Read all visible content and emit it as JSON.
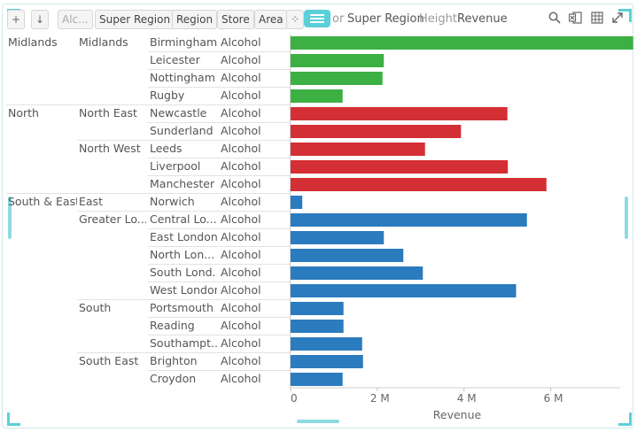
{
  "toolbar": {
    "filter_chip": "Alc...",
    "breadcrumbs": [
      "Super Region",
      "Region",
      "Store",
      "Area"
    ],
    "color_label_partial": "or",
    "color_value": "Super Region",
    "height_label": "Height",
    "height_value": "Revenue",
    "icons": [
      "add-panel-icon",
      "sort-icon",
      "scatter-icon",
      "menu-icon",
      "search-icon",
      "excel-icon",
      "table-icon",
      "expand-icon"
    ]
  },
  "chart_data": {
    "type": "bar",
    "orientation": "horizontal",
    "xlabel": "Revenue",
    "xlim": [
      0,
      7.6
    ],
    "xticks": [
      0,
      2,
      4,
      6
    ],
    "xtick_labels": [
      "0",
      "2 M",
      "4 M",
      "6 M"
    ],
    "super_regions": [
      {
        "name": "Midlands",
        "color": "#3cb043"
      },
      {
        "name": "North",
        "color": "#d32f35"
      },
      {
        "name": "South & East",
        "color": "#2b7bbf"
      }
    ],
    "rows": [
      {
        "super_region": "Midlands",
        "region": "Midlands",
        "store": "Birmingham",
        "area": "Alcohol",
        "revenue": 7.9
      },
      {
        "super_region": "",
        "region": "",
        "store": "Leicester",
        "area": "Alcohol",
        "revenue": 2.15
      },
      {
        "super_region": "",
        "region": "",
        "store": "Nottingham",
        "area": "Alcohol",
        "revenue": 2.12
      },
      {
        "super_region": "",
        "region": "",
        "store": "Rugby",
        "area": "Alcohol",
        "revenue": 1.2
      },
      {
        "super_region": "North",
        "region": "North East",
        "store": "Newcastle",
        "area": "Alcohol",
        "revenue": 5.0
      },
      {
        "super_region": "",
        "region": "",
        "store": "Sunderland",
        "area": "Alcohol",
        "revenue": 3.93
      },
      {
        "super_region": "",
        "region": "North West",
        "store": "Leeds",
        "area": "Alcohol",
        "revenue": 3.1
      },
      {
        "super_region": "",
        "region": "",
        "store": "Liverpool",
        "area": "Alcohol",
        "revenue": 5.01
      },
      {
        "super_region": "",
        "region": "",
        "store": "Manchester",
        "area": "Alcohol",
        "revenue": 5.9
      },
      {
        "super_region": "South & East",
        "region": "East",
        "store": "Norwich",
        "area": "Alcohol",
        "revenue": 0.27
      },
      {
        "super_region": "",
        "region": "Greater Lo...",
        "store": "Central Lo...",
        "area": "Alcohol",
        "revenue": 5.45
      },
      {
        "super_region": "",
        "region": "",
        "store": "East London",
        "area": "Alcohol",
        "revenue": 2.15
      },
      {
        "super_region": "",
        "region": "",
        "store": "North Lon...",
        "area": "Alcohol",
        "revenue": 2.6
      },
      {
        "super_region": "",
        "region": "",
        "store": "South Lond...",
        "area": "Alcohol",
        "revenue": 3.05
      },
      {
        "super_region": "",
        "region": "",
        "store": "West London",
        "area": "Alcohol",
        "revenue": 5.2
      },
      {
        "super_region": "",
        "region": "South",
        "store": "Portsmouth",
        "area": "Alcohol",
        "revenue": 1.22
      },
      {
        "super_region": "",
        "region": "",
        "store": "Reading",
        "area": "Alcohol",
        "revenue": 1.22
      },
      {
        "super_region": "",
        "region": "",
        "store": "Southampt...",
        "area": "Alcohol",
        "revenue": 1.65
      },
      {
        "super_region": "",
        "region": "South East",
        "store": "Brighton",
        "area": "Alcohol",
        "revenue": 1.67
      },
      {
        "super_region": "",
        "region": "",
        "store": "Croydon",
        "area": "Alcohol",
        "revenue": 1.2
      }
    ]
  }
}
